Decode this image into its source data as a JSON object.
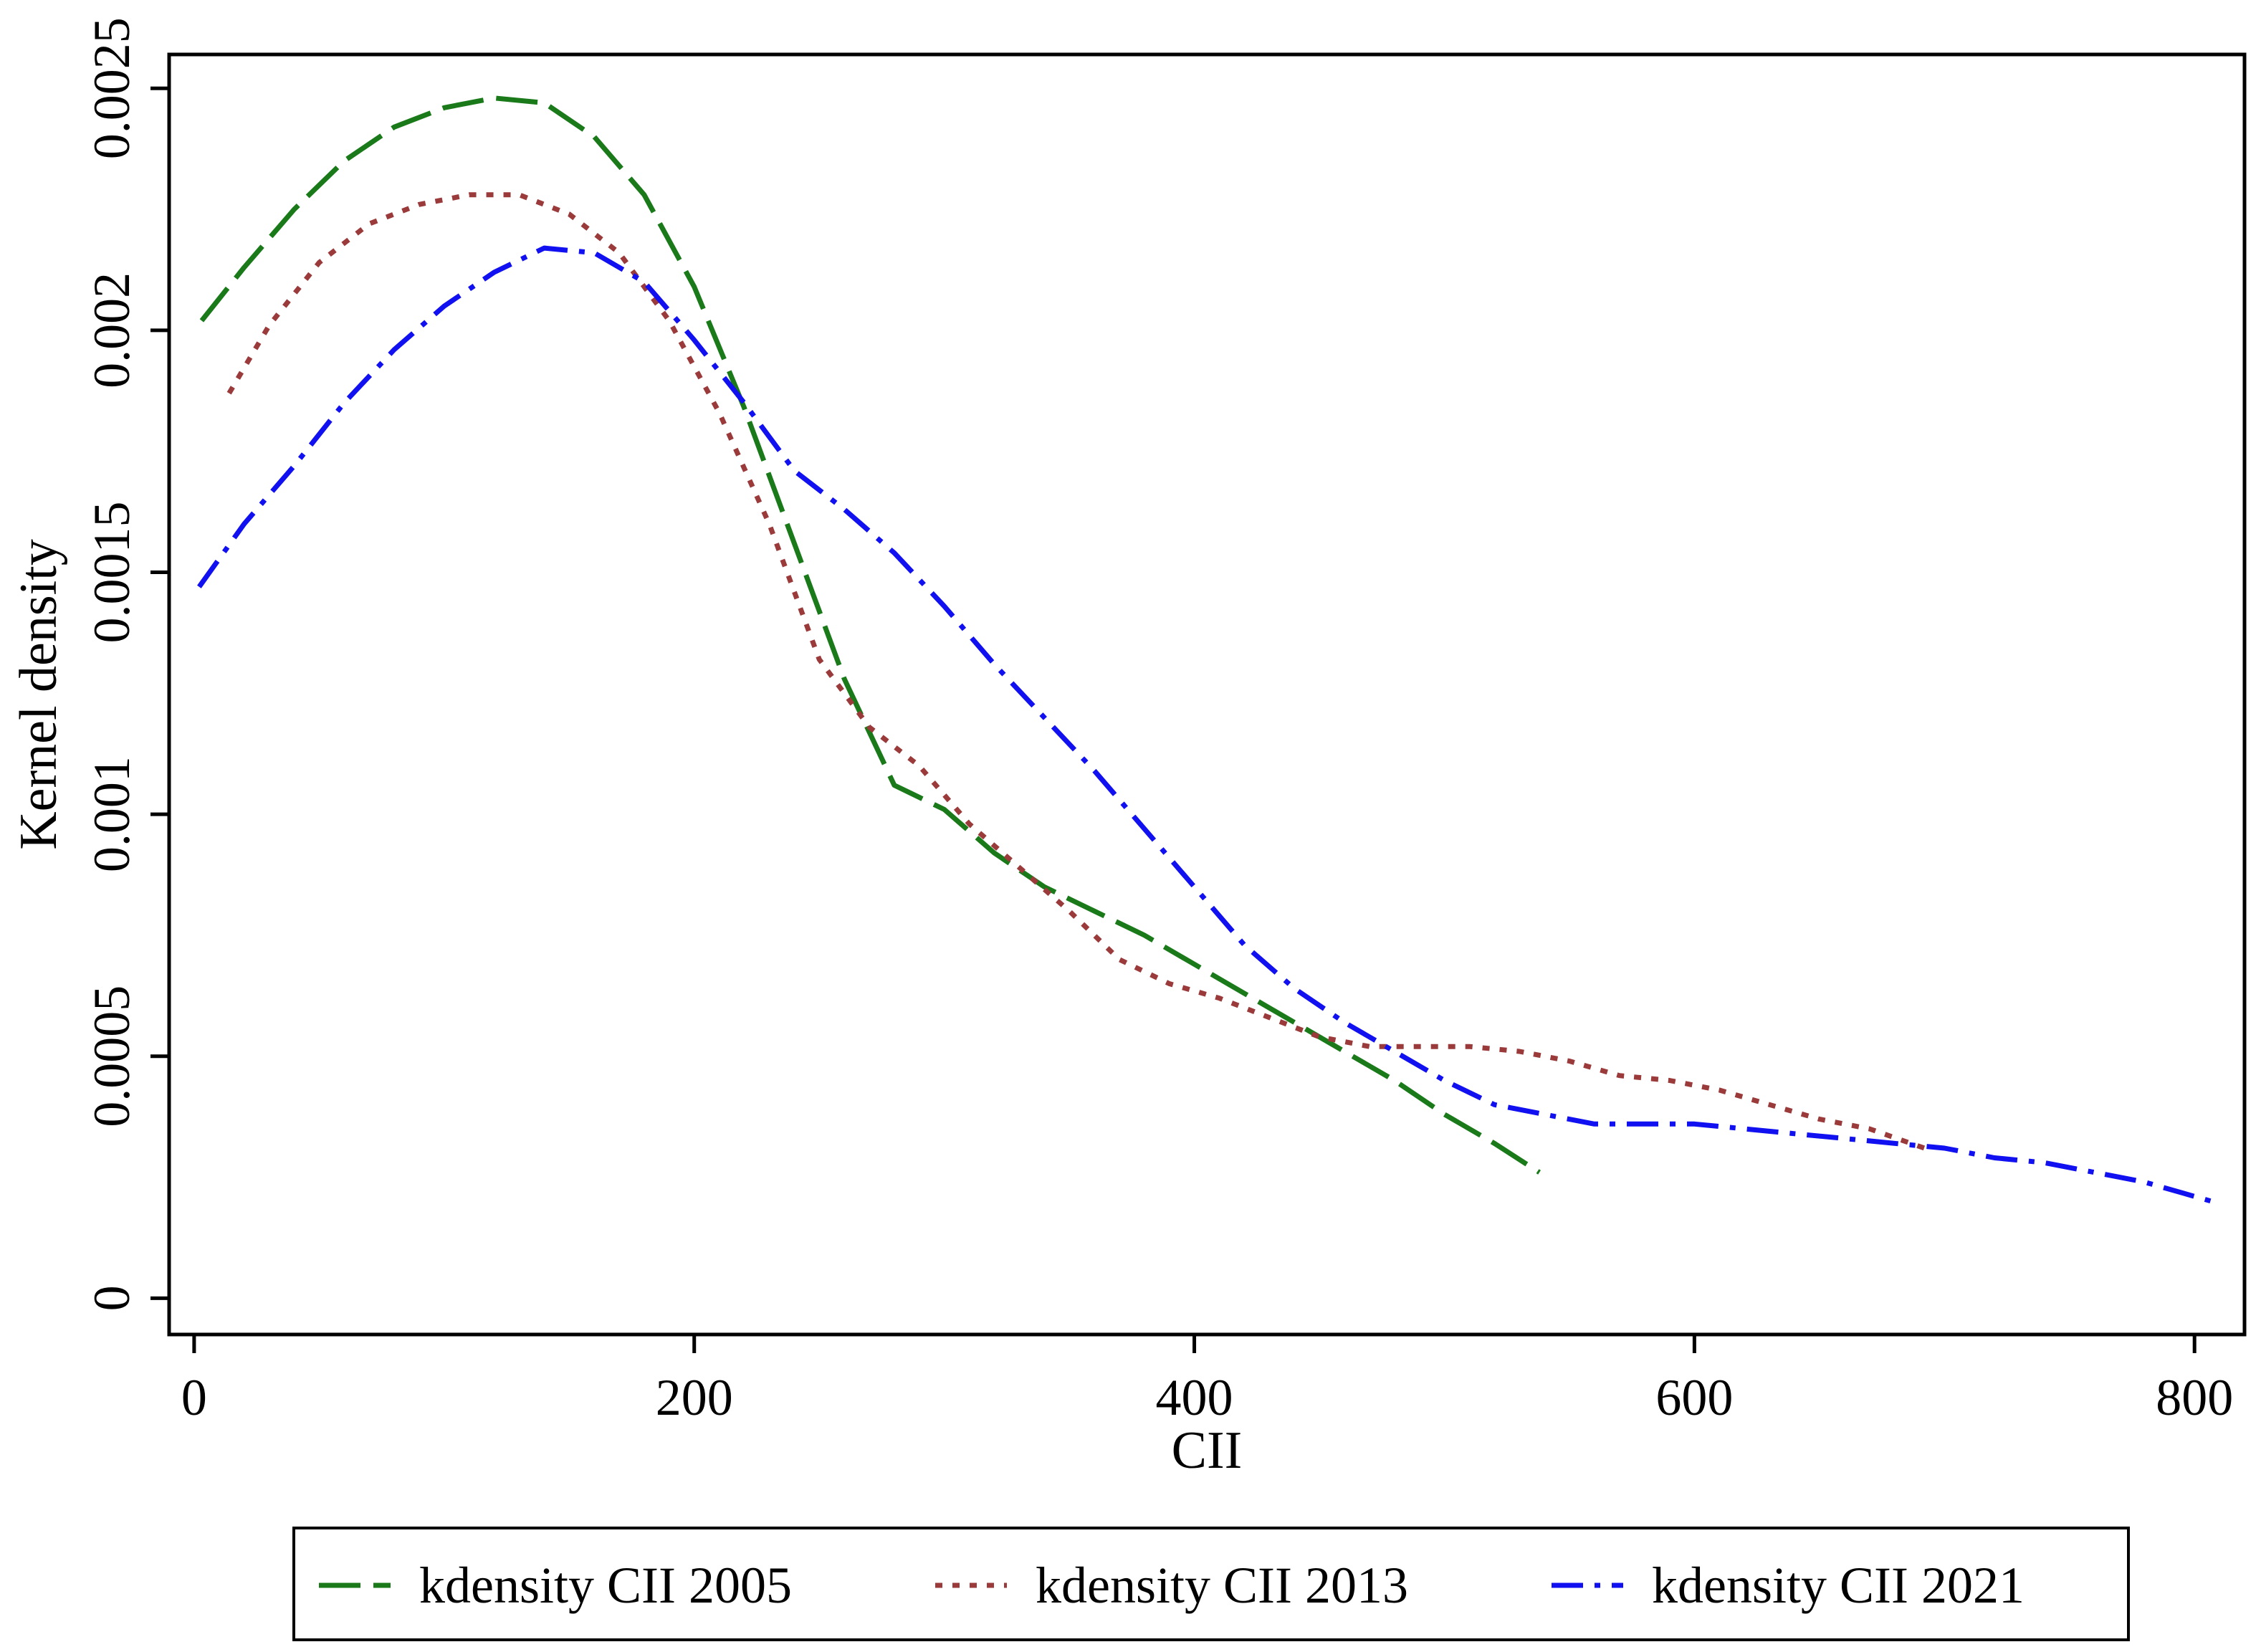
{
  "chart_data": {
    "type": "line",
    "title": "",
    "xlabel": "CII",
    "ylabel": "Kernel density",
    "xlim": [
      -10,
      820
    ],
    "ylim": [
      -7.5e-05,
      0.00257
    ],
    "x_ticks": [
      0,
      200,
      400,
      600,
      800
    ],
    "x_tick_labels": [
      "0",
      "200",
      "400",
      "600",
      "800"
    ],
    "y_ticks": [
      0,
      0.0005,
      0.001,
      0.0015,
      0.002,
      0.0025
    ],
    "y_tick_labels": [
      "0",
      "0.0005",
      "0.001",
      "0.0015",
      "0.002",
      "0.0025"
    ],
    "grid": false,
    "legend_position": "bottom",
    "series": [
      {
        "name": "kdensity CII 2005",
        "color": "#1a7a1a",
        "dash": "long-dash",
        "x": [
          3,
          20,
          40,
          60,
          80,
          100,
          120,
          140,
          160,
          180,
          200,
          220,
          240,
          260,
          280,
          300,
          320,
          340,
          360,
          380,
          400,
          420,
          440,
          460,
          480,
          500,
          520,
          538
        ],
        "y": [
          0.00202,
          0.00213,
          0.00225,
          0.00235,
          0.00242,
          0.00246,
          0.00248,
          0.00247,
          0.0024,
          0.00228,
          0.00209,
          0.00184,
          0.00156,
          0.00128,
          0.00106,
          0.00101,
          0.00092,
          0.00085,
          0.0008,
          0.00075,
          0.00069,
          0.00063,
          0.00057,
          0.00051,
          0.00045,
          0.00038,
          0.00032,
          0.00026
        ]
      },
      {
        "name": "kdensity CII 2013",
        "color": "#9a3a3a",
        "dash": "dot",
        "x": [
          14,
          30,
          50,
          70,
          90,
          110,
          130,
          150,
          170,
          190,
          210,
          230,
          250,
          270,
          290,
          310,
          330,
          350,
          370,
          390,
          410,
          430,
          450,
          470,
          490,
          510,
          530,
          550,
          570,
          590,
          610,
          630,
          650,
          670,
          692
        ],
        "y": [
          0.00187,
          0.00201,
          0.00214,
          0.00222,
          0.00226,
          0.00228,
          0.00228,
          0.00224,
          0.00216,
          0.00202,
          0.00183,
          0.0016,
          0.00132,
          0.00118,
          0.0011,
          0.00098,
          0.00089,
          0.0008,
          0.0007,
          0.00065,
          0.00062,
          0.00058,
          0.00054,
          0.00052,
          0.00052,
          0.00052,
          0.00051,
          0.00049,
          0.00046,
          0.00045,
          0.00043,
          0.0004,
          0.00037,
          0.00035,
          0.00031
        ]
      },
      {
        "name": "kdensity CII 2021",
        "color": "#1010f0",
        "dash": "dash-dot",
        "x": [
          2,
          20,
          40,
          60,
          80,
          100,
          120,
          140,
          160,
          180,
          200,
          220,
          240,
          260,
          280,
          300,
          320,
          340,
          360,
          380,
          400,
          420,
          440,
          460,
          480,
          500,
          520,
          540,
          560,
          580,
          600,
          620,
          640,
          660,
          680,
          700,
          720,
          740,
          760,
          780,
          807
        ],
        "y": [
          0.00147,
          0.0016,
          0.00172,
          0.00185,
          0.00196,
          0.00205,
          0.00212,
          0.00217,
          0.00216,
          0.0021,
          0.00198,
          0.00185,
          0.00171,
          0.00163,
          0.00154,
          0.00143,
          0.00131,
          0.0012,
          0.00109,
          0.00097,
          0.00085,
          0.00073,
          0.00064,
          0.00057,
          0.00051,
          0.00045,
          0.0004,
          0.00038,
          0.00036,
          0.00036,
          0.00036,
          0.00035,
          0.00034,
          0.00033,
          0.00032,
          0.00031,
          0.00029,
          0.00028,
          0.00026,
          0.00024,
          0.0002
        ]
      }
    ]
  }
}
